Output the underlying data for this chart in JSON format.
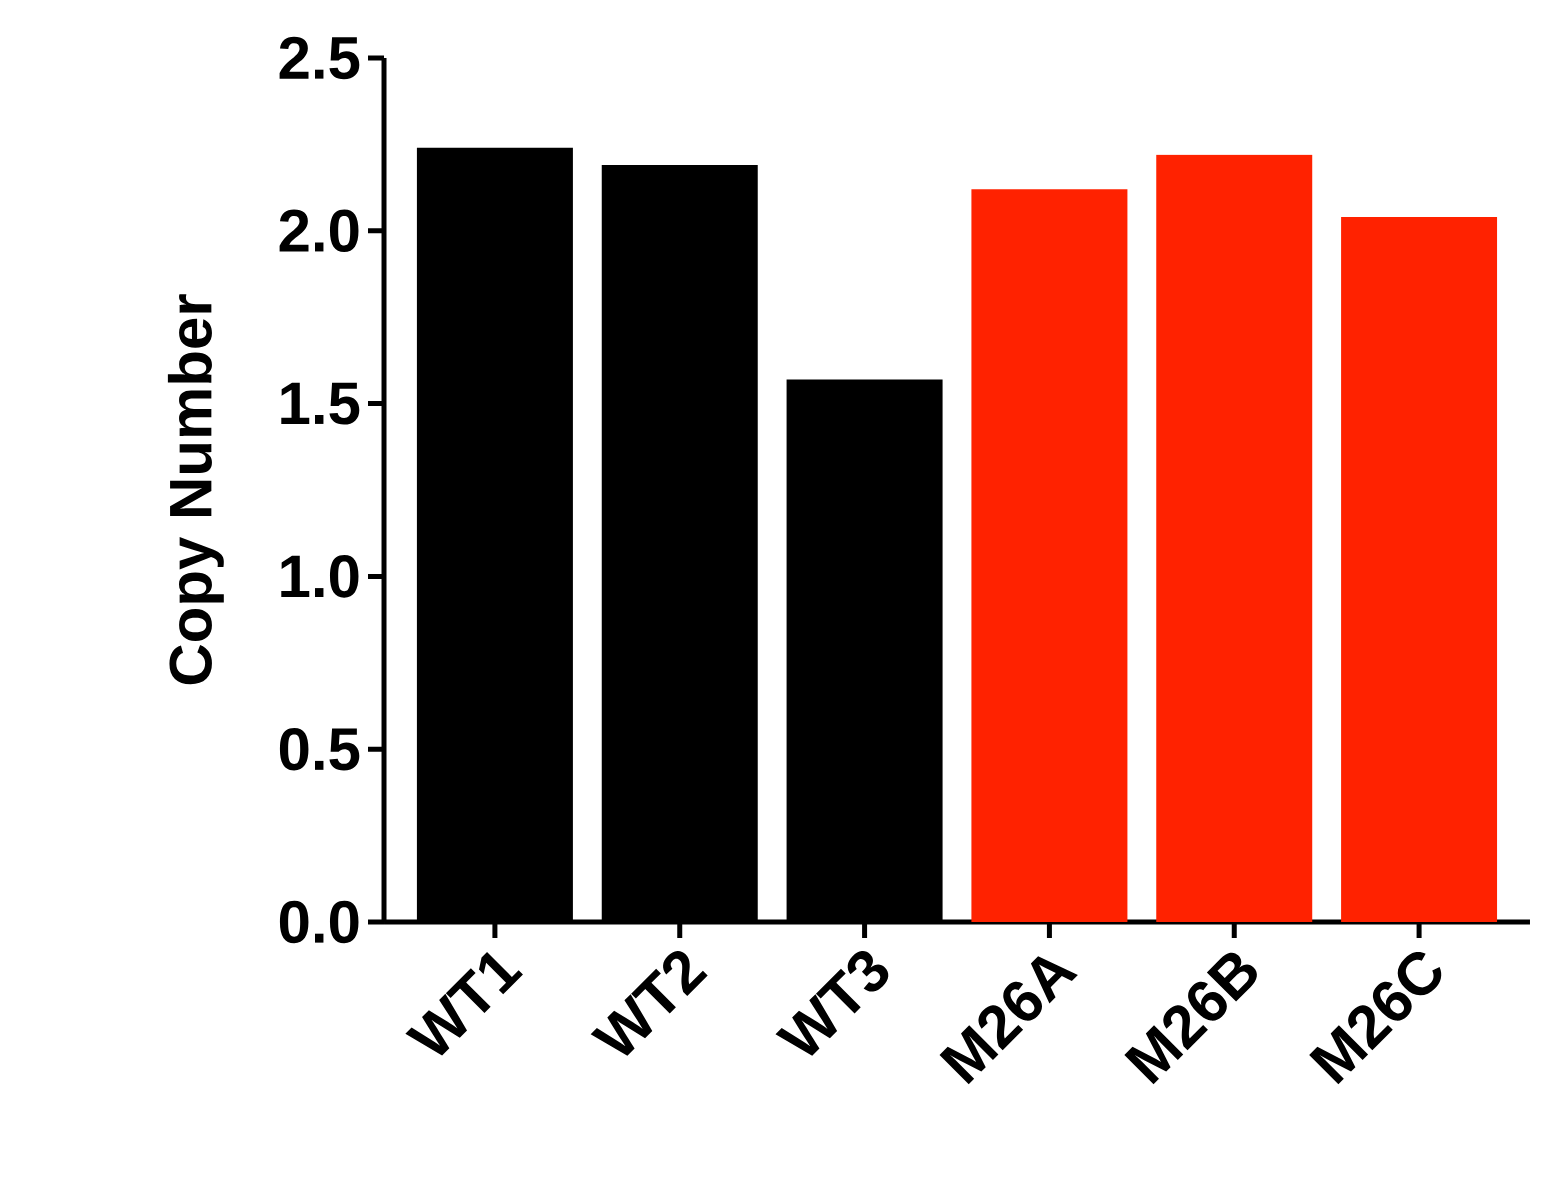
{
  "chart_data": {
    "type": "bar",
    "ylabel": "Copy Number",
    "categories": [
      "WT1",
      "WT2",
      "WT3",
      "M26A",
      "M26B",
      "M26C"
    ],
    "values": [
      2.24,
      2.19,
      1.57,
      2.12,
      2.22,
      2.04
    ],
    "colors": [
      "#000000",
      "#000000",
      "#000000",
      "#ff2200",
      "#ff2200",
      "#ff2200"
    ],
    "ylim": [
      0,
      2.5
    ],
    "yticks": [
      {
        "value": 0,
        "label": "0.0"
      },
      {
        "value": 0.5,
        "label": "0.5"
      },
      {
        "value": 1,
        "label": "1.0"
      },
      {
        "value": 1.5,
        "label": "1.5"
      },
      {
        "value": 2,
        "label": "2.0"
      },
      {
        "value": 2.5,
        "label": "2.5"
      }
    ]
  }
}
